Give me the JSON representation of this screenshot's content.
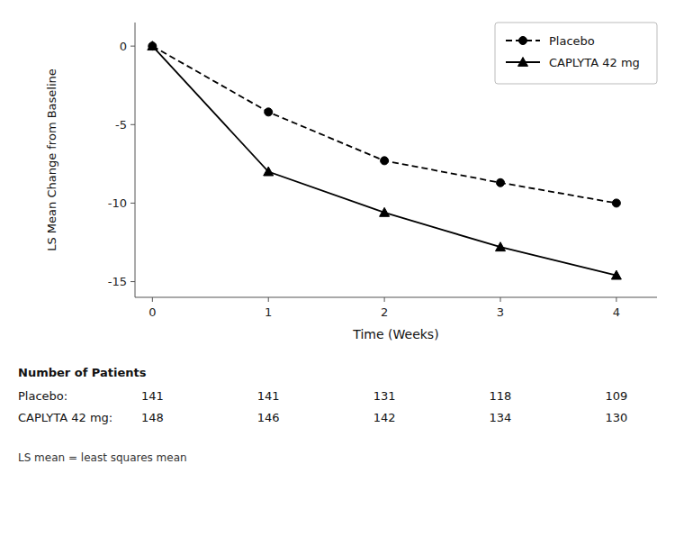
{
  "chart_data": {
    "type": "line",
    "xlabel": "Time (Weeks)",
    "ylabel": "LS Mean Change from Baseline",
    "x": [
      0,
      1,
      2,
      3,
      4
    ],
    "series": [
      {
        "name": "Placebo",
        "color": "#000000",
        "marker": "circle",
        "line_style": "dashed",
        "values": [
          0,
          -4.2,
          -7.3,
          -8.7,
          -10.0
        ]
      },
      {
        "name": "CAPLYTA 42 mg",
        "color": "#000000",
        "marker": "triangle",
        "line_style": "solid",
        "values": [
          0,
          -8.0,
          -10.6,
          -12.8,
          -14.6
        ]
      }
    ],
    "xlim": [
      -0.15,
      4.35
    ],
    "ylim": [
      -16,
      1.5
    ],
    "xticks": [
      0,
      1,
      2,
      3,
      4
    ],
    "yticks": [
      0,
      -5,
      -10,
      -15
    ],
    "grid": false,
    "legend": "upper right",
    "patients": {
      "title": "Number of Patients",
      "rows": [
        {
          "label": "Placebo:",
          "counts": [
            141,
            141,
            131,
            118,
            109
          ]
        },
        {
          "label": "CAPLYTA 42 mg:",
          "counts": [
            148,
            146,
            142,
            134,
            130
          ]
        }
      ]
    },
    "footnote": "LS mean = least squares mean"
  }
}
